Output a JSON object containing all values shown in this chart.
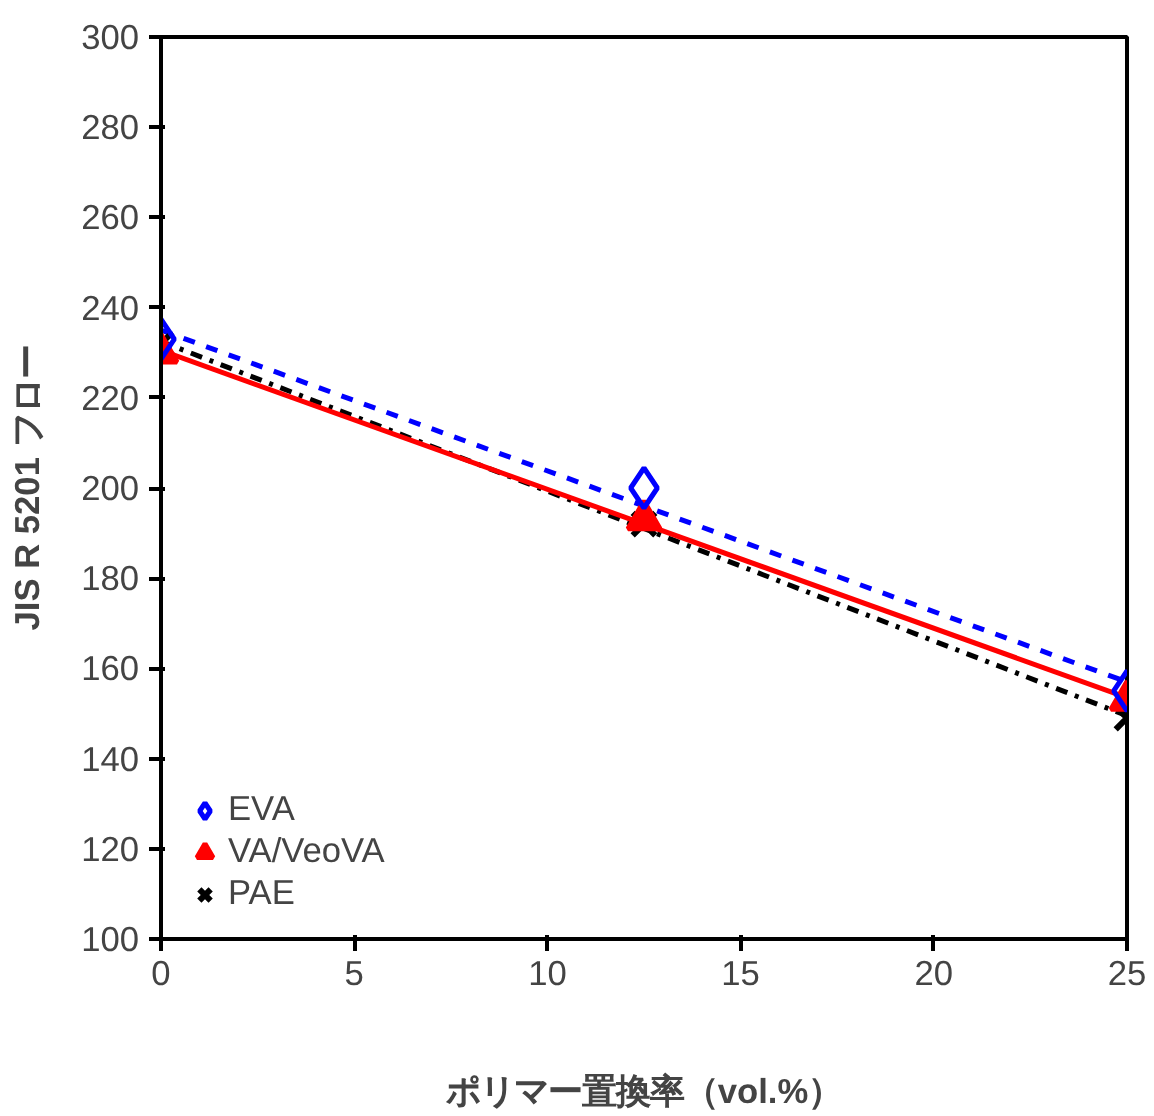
{
  "chart_data": {
    "type": "scatter",
    "xlabel": "ポリマー置換率（vol.%）",
    "ylabel": "JIS R 5201 フロー",
    "xlim": [
      0,
      25
    ],
    "xticks": [
      0,
      5,
      10,
      15,
      20,
      25
    ],
    "ylim": [
      100,
      300
    ],
    "yticks": [
      100,
      120,
      140,
      160,
      180,
      200,
      220,
      240,
      260,
      280,
      300
    ],
    "grid": false,
    "legend": "bottom left",
    "series": [
      {
        "name": "EVA",
        "color": "#0000ff",
        "marker": "diamond",
        "x": [
          0,
          12.5,
          25
        ],
        "values": [
          233,
          200,
          155
        ]
      },
      {
        "name": "VA/VeoVA",
        "color": "#ff0000",
        "marker": "triangle",
        "x": [
          0,
          12.5,
          25
        ],
        "values": [
          230,
          193,
          153
        ]
      },
      {
        "name": "PAE",
        "color": "#000000",
        "marker": "cross",
        "x": [
          0,
          12.5,
          25
        ],
        "values": [
          232,
          192,
          149
        ]
      },
      {
        "type": "line",
        "color": "#0000ff",
        "line_style": "dashed",
        "x": [
          0,
          25
        ],
        "values": [
          235,
          157
        ]
      },
      {
        "type": "line",
        "color": "#ff0000",
        "line_style": "solid",
        "x": [
          0,
          25
        ],
        "values": [
          230.5,
          153.5
        ]
      },
      {
        "type": "line",
        "color": "#000000",
        "line_style": "dashdot",
        "x": [
          0,
          25
        ],
        "values": [
          232.5,
          149.5
        ]
      }
    ]
  }
}
